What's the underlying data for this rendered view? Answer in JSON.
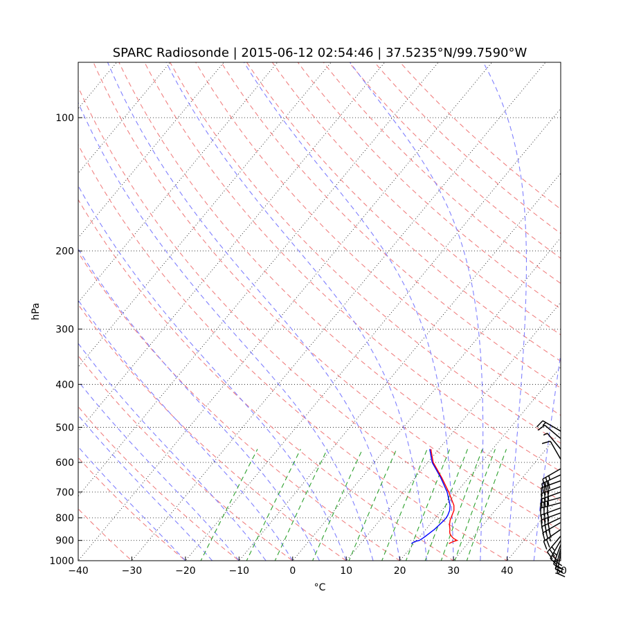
{
  "chart_data": {
    "type": "line",
    "chart_kind": "skew-T log-P diagram",
    "title": "SPARC Radiosonde | 2015-06-12 02:54:46 | 37.5235°N/99.7590°W",
    "xlabel": "°C",
    "ylabel": "hPa",
    "xlim": [
      -40,
      50
    ],
    "ylim": [
      1000,
      75
    ],
    "y_scale": "log",
    "x_ticks": [
      "−40",
      "−30",
      "−20",
      "−10",
      "0",
      "10",
      "20",
      "30",
      "40",
      "50"
    ],
    "y_ticks": [
      "100",
      "200",
      "300",
      "400",
      "500",
      "600",
      "700",
      "800",
      "900",
      "1000"
    ],
    "grid": "dotted",
    "colors": {
      "temperature": "#ff0000",
      "dewpoint": "#0000ff",
      "dry_adiabats": "#f08080",
      "moist_adiabats": "#7f7fff",
      "mixing_ratio": "#2ca02c",
      "isotherms_grid": "#000000"
    },
    "series": [
      {
        "name": "temperature",
        "pressure_hpa": [
          915,
          905,
          900,
          890,
          880,
          870,
          860,
          850,
          840,
          830,
          820,
          810,
          800,
          790,
          780,
          770,
          750,
          700,
          650,
          600,
          560
        ],
        "temp_c": [
          26.5,
          27.0,
          27.5,
          26.5,
          25.8,
          25.2,
          24.8,
          24.5,
          24.1,
          23.7,
          23.4,
          23.1,
          22.9,
          22.7,
          22.5,
          22.3,
          21.5,
          18.5,
          15.0,
          11.0,
          8.5
        ]
      },
      {
        "name": "dewpoint",
        "pressure_hpa": [
          915,
          905,
          900,
          890,
          880,
          870,
          860,
          850,
          840,
          830,
          820,
          810,
          800,
          790,
          780,
          770,
          750,
          700,
          650,
          600,
          560
        ],
        "dewpoint_c": [
          19.5,
          19.8,
          20.5,
          20.8,
          21.0,
          21.2,
          21.4,
          21.6,
          21.7,
          21.8,
          21.9,
          22.0,
          22.0,
          21.9,
          21.7,
          21.5,
          20.8,
          18.2,
          14.8,
          10.8,
          8.3
        ]
      }
    ],
    "wind_barbs": {
      "pressure_hpa": [
        510,
        530,
        560,
        590,
        620,
        640,
        660,
        680,
        700,
        720,
        740,
        760,
        780,
        800,
        820,
        850,
        880,
        900,
        920,
        940,
        960
      ],
      "direction_deg": [
        300,
        310,
        320,
        330,
        240,
        245,
        250,
        250,
        250,
        255,
        255,
        250,
        250,
        245,
        240,
        235,
        220,
        210,
        200,
        195,
        190
      ],
      "speed_kt": [
        15,
        10,
        5,
        10,
        25,
        30,
        30,
        30,
        30,
        30,
        30,
        30,
        30,
        30,
        30,
        25,
        25,
        25,
        20,
        20,
        15
      ]
    }
  }
}
